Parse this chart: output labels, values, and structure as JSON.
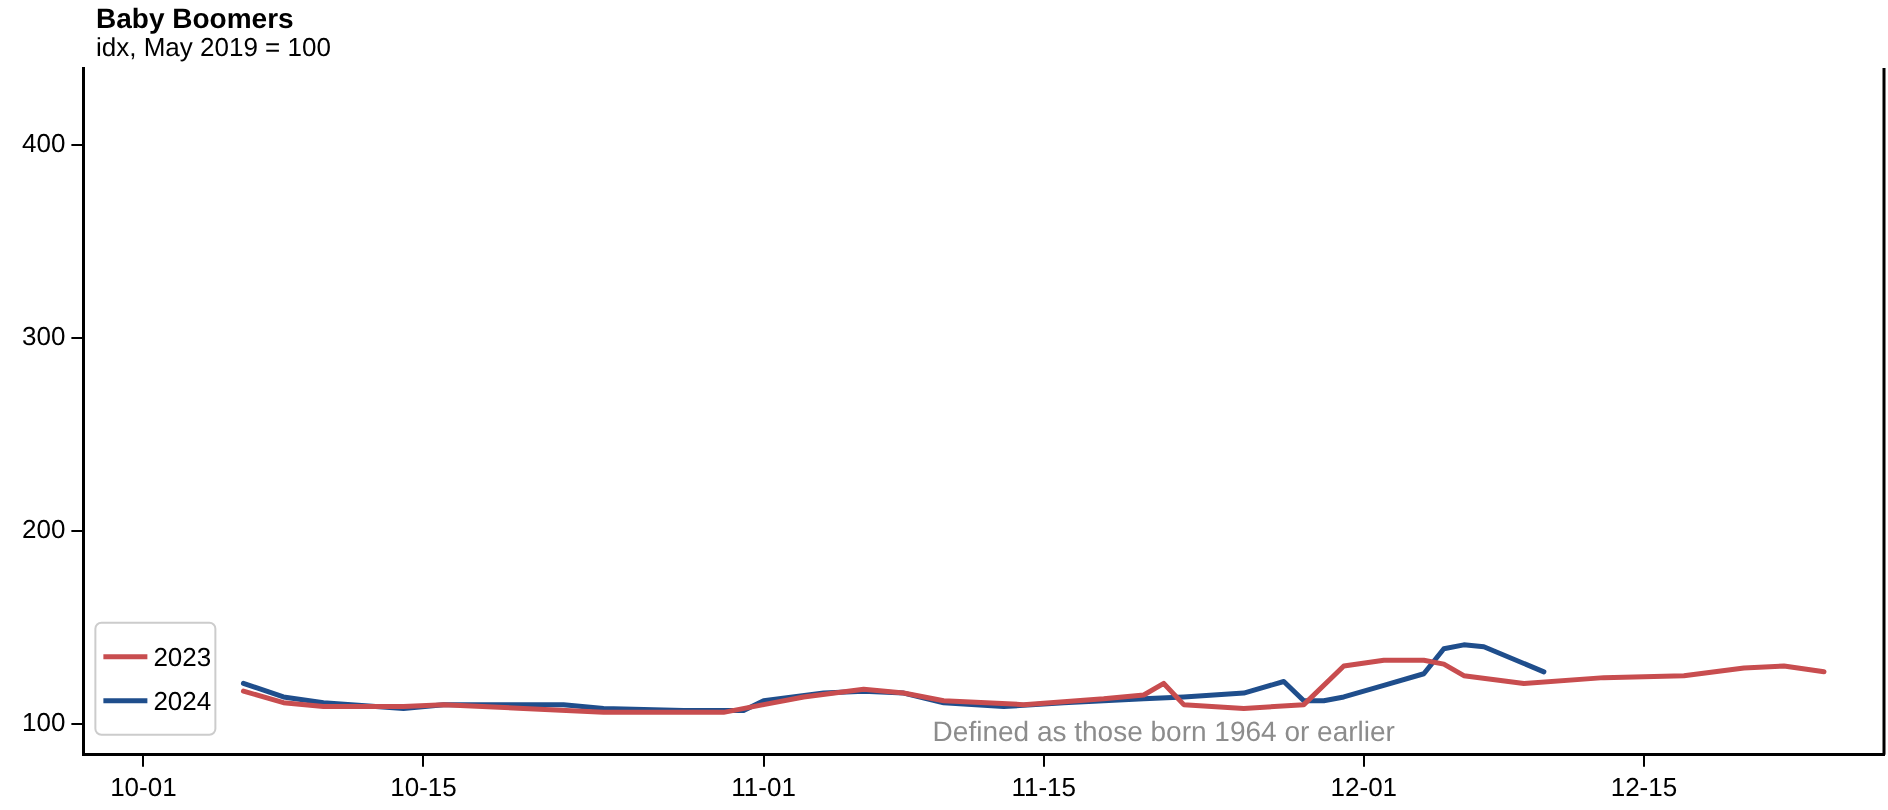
{
  "chart_data": {
    "type": "line",
    "title": "Baby Boomers",
    "subtitle": "idx, May 2019 = 100",
    "annotations": [
      "Defined as those born 1964 or earlier"
    ],
    "xlim": [
      "--09-28",
      "--12-27"
    ],
    "xticks": [
      {
        "value": "--10-01",
        "label": "10-01"
      },
      {
        "value": "--10-15",
        "label": "10-15"
      },
      {
        "value": "--11-01",
        "label": "11-01"
      },
      {
        "value": "--11-15",
        "label": "11-15"
      },
      {
        "value": "--12-01",
        "label": "12-01"
      },
      {
        "value": "--12-15",
        "label": "12-15"
      }
    ],
    "ylim": [
      84,
      440
    ],
    "yticks": [
      100,
      200,
      300,
      400
    ],
    "grid": false,
    "legend": "bottom left",
    "marker": "none",
    "line_style": "solid",
    "series": [
      {
        "name": "2023",
        "color": "#c84d4f",
        "x": [
          "--10-06",
          "--10-08",
          "--10-10",
          "--10-14",
          "--10-16",
          "--10-20",
          "--10-24",
          "--10-28",
          "--10-30",
          "--11-01",
          "--11-03",
          "--11-06",
          "--11-08",
          "--11-10",
          "--11-14",
          "--11-18",
          "--11-20",
          "--11-21",
          "--11-22",
          "--11-25",
          "--11-28",
          "--11-30",
          "--12-02",
          "--12-04",
          "--12-05",
          "--12-06",
          "--12-09",
          "--12-13",
          "--12-17",
          "--12-20",
          "--12-22",
          "--12-24"
        ],
        "values": [
          117,
          111,
          109,
          109,
          110,
          108,
          106,
          106,
          106,
          110,
          114,
          118,
          116,
          112,
          110,
          113,
          115,
          121,
          110,
          108,
          110,
          130,
          133,
          133,
          131,
          125,
          121,
          124,
          125,
          129,
          130,
          127
        ]
      },
      {
        "name": "2024",
        "color": "#1f4e8c",
        "x": [
          "--10-06",
          "--10-08",
          "--10-10",
          "--10-14",
          "--10-16",
          "--10-20",
          "--10-22",
          "--10-24",
          "--10-28",
          "--10-31",
          "--11-01",
          "--11-04",
          "--11-06",
          "--11-08",
          "--11-10",
          "--11-13",
          "--11-16",
          "--11-20",
          "--11-22",
          "--11-25",
          "--11-27",
          "--11-28",
          "--11-29",
          "--11-30",
          "--12-02",
          "--12-04",
          "--12-05",
          "--12-06",
          "--12-07",
          "--12-10"
        ],
        "values": [
          121,
          114,
          111,
          108,
          110,
          110,
          110,
          108,
          107,
          107,
          112,
          116,
          117,
          116,
          111,
          109,
          111,
          113,
          114,
          116,
          122,
          112,
          112,
          114,
          120,
          126,
          139,
          141,
          140,
          127
        ]
      }
    ]
  }
}
